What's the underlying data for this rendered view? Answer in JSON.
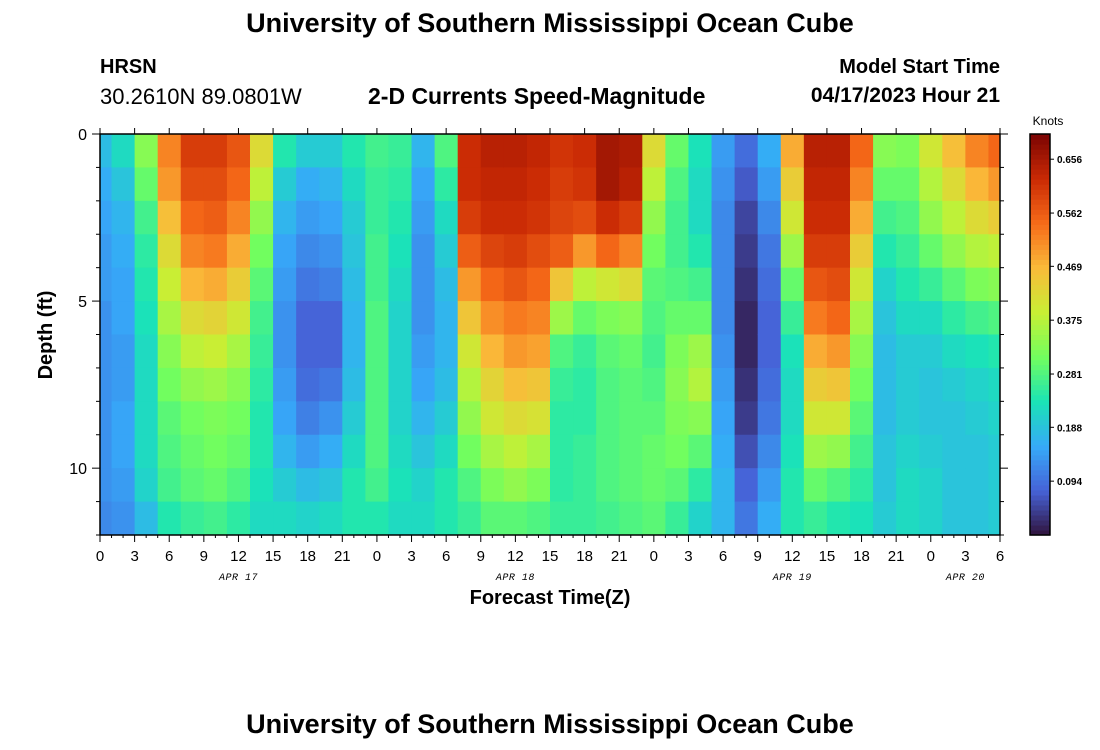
{
  "header": {
    "title": "University of Southern Mississippi Ocean Cube",
    "station": "HRSN",
    "coordinates": "30.2610N  89.0801W",
    "subtitle": "2-D Currents Speed-Magnitude",
    "model_start_label": "Model Start Time",
    "model_start_value": "04/17/2023 Hour 21"
  },
  "footer": {
    "title": "University of Southern Mississippi Ocean Cube"
  },
  "chart_data": {
    "type": "heatmap",
    "title": "2-D Currents Speed-Magnitude",
    "xlabel": "Forecast Time(Z)",
    "ylabel": "Depth (ft)",
    "x_unit": "hours since APR 17 00Z",
    "xlim": [
      0,
      78
    ],
    "ylim": [
      0,
      12
    ],
    "y_inverted": true,
    "x_tick_labels": [
      "0",
      "3",
      "6",
      "9",
      "12",
      "15",
      "18",
      "21",
      "0",
      "3",
      "6",
      "9",
      "12",
      "15",
      "18",
      "21",
      "0",
      "3",
      "6",
      "9",
      "12",
      "15",
      "18",
      "21",
      "0",
      "3",
      "6"
    ],
    "date_labels": [
      {
        "text": "APR 17",
        "hour": 12
      },
      {
        "text": "APR 18",
        "hour": 36
      },
      {
        "text": "APR 19",
        "hour": 60
      },
      {
        "text": "APR 20",
        "hour": 75
      }
    ],
    "y_major_ticks": [
      0,
      5,
      10
    ],
    "colorbar": {
      "title": "Knots",
      "min": 0.0,
      "max": 0.7,
      "tick_labels": [
        "0.094",
        "0.188",
        "0.281",
        "0.375",
        "0.469",
        "0.562",
        "0.656"
      ],
      "colors": [
        "#30123b",
        "#4662d7",
        "#36aaf9",
        "#1ae4b6",
        "#72fe5e",
        "#c8ef34",
        "#faba39",
        "#f66b19",
        "#ca2a04",
        "#7a0403"
      ]
    },
    "depths": [
      0.5,
      1.5,
      2.5,
      3.5,
      4.5,
      5.5,
      6.5,
      7.5,
      8.5,
      9.5,
      10.5,
      11.5
    ],
    "series": [
      {
        "time": 0,
        "values": [
          0.18,
          0.16,
          0.15,
          0.14,
          0.14,
          0.13,
          0.13,
          0.13,
          0.13,
          0.13,
          0.13,
          0.12
        ]
      },
      {
        "time": 2,
        "values": [
          0.22,
          0.19,
          0.17,
          0.16,
          0.15,
          0.15,
          0.14,
          0.14,
          0.15,
          0.15,
          0.14,
          0.13
        ]
      },
      {
        "time": 4,
        "values": [
          0.33,
          0.3,
          0.27,
          0.25,
          0.24,
          0.23,
          0.22,
          0.22,
          0.22,
          0.22,
          0.21,
          0.18
        ]
      },
      {
        "time": 6,
        "values": [
          0.52,
          0.5,
          0.46,
          0.42,
          0.39,
          0.36,
          0.33,
          0.31,
          0.29,
          0.28,
          0.27,
          0.24
        ]
      },
      {
        "time": 8,
        "values": [
          0.6,
          0.58,
          0.55,
          0.52,
          0.47,
          0.42,
          0.38,
          0.34,
          0.31,
          0.3,
          0.29,
          0.26
        ]
      },
      {
        "time": 10,
        "values": [
          0.6,
          0.58,
          0.56,
          0.53,
          0.48,
          0.43,
          0.39,
          0.35,
          0.32,
          0.31,
          0.3,
          0.27
        ]
      },
      {
        "time": 12,
        "values": [
          0.57,
          0.55,
          0.52,
          0.48,
          0.44,
          0.4,
          0.36,
          0.33,
          0.31,
          0.3,
          0.28,
          0.25
        ]
      },
      {
        "time": 14,
        "values": [
          0.42,
          0.38,
          0.34,
          0.31,
          0.29,
          0.27,
          0.26,
          0.25,
          0.24,
          0.24,
          0.23,
          0.22
        ]
      },
      {
        "time": 16,
        "values": [
          0.24,
          0.2,
          0.17,
          0.15,
          0.14,
          0.13,
          0.13,
          0.14,
          0.15,
          0.17,
          0.2,
          0.22
        ]
      },
      {
        "time": 18,
        "values": [
          0.2,
          0.16,
          0.14,
          0.12,
          0.1,
          0.08,
          0.08,
          0.09,
          0.11,
          0.14,
          0.18,
          0.21
        ]
      },
      {
        "time": 20,
        "values": [
          0.2,
          0.17,
          0.15,
          0.13,
          0.11,
          0.08,
          0.08,
          0.1,
          0.13,
          0.16,
          0.19,
          0.22
        ]
      },
      {
        "time": 22,
        "values": [
          0.24,
          0.22,
          0.2,
          0.19,
          0.18,
          0.17,
          0.17,
          0.18,
          0.2,
          0.22,
          0.24,
          0.24
        ]
      },
      {
        "time": 24,
        "values": [
          0.27,
          0.26,
          0.26,
          0.27,
          0.27,
          0.28,
          0.28,
          0.28,
          0.28,
          0.28,
          0.27,
          0.24
        ]
      },
      {
        "time": 26,
        "values": [
          0.26,
          0.25,
          0.24,
          0.23,
          0.22,
          0.21,
          0.21,
          0.21,
          0.21,
          0.22,
          0.23,
          0.22
        ]
      },
      {
        "time": 28,
        "values": [
          0.17,
          0.15,
          0.14,
          0.13,
          0.13,
          0.13,
          0.14,
          0.15,
          0.17,
          0.19,
          0.21,
          0.22
        ]
      },
      {
        "time": 30,
        "values": [
          0.28,
          0.25,
          0.22,
          0.2,
          0.18,
          0.17,
          0.17,
          0.18,
          0.2,
          0.22,
          0.24,
          0.24
        ]
      },
      {
        "time": 32,
        "values": [
          0.62,
          0.62,
          0.6,
          0.56,
          0.5,
          0.45,
          0.4,
          0.37,
          0.34,
          0.31,
          0.28,
          0.26
        ]
      },
      {
        "time": 34,
        "values": [
          0.64,
          0.63,
          0.62,
          0.59,
          0.55,
          0.51,
          0.47,
          0.43,
          0.4,
          0.36,
          0.32,
          0.29
        ]
      },
      {
        "time": 36,
        "values": [
          0.64,
          0.63,
          0.62,
          0.6,
          0.57,
          0.53,
          0.5,
          0.46,
          0.42,
          0.38,
          0.34,
          0.29
        ]
      },
      {
        "time": 38,
        "values": [
          0.63,
          0.62,
          0.61,
          0.58,
          0.55,
          0.52,
          0.49,
          0.45,
          0.41,
          0.36,
          0.32,
          0.28
        ]
      },
      {
        "time": 40,
        "values": [
          0.61,
          0.6,
          0.59,
          0.56,
          0.45,
          0.35,
          0.28,
          0.26,
          0.25,
          0.25,
          0.25,
          0.26
        ]
      },
      {
        "time": 42,
        "values": [
          0.62,
          0.61,
          0.58,
          0.5,
          0.38,
          0.3,
          0.26,
          0.25,
          0.25,
          0.26,
          0.26,
          0.26
        ]
      },
      {
        "time": 44,
        "values": [
          0.66,
          0.66,
          0.62,
          0.55,
          0.4,
          0.32,
          0.29,
          0.28,
          0.28,
          0.28,
          0.28,
          0.27
        ]
      },
      {
        "time": 46,
        "values": [
          0.65,
          0.64,
          0.6,
          0.52,
          0.42,
          0.33,
          0.3,
          0.29,
          0.29,
          0.29,
          0.29,
          0.28
        ]
      },
      {
        "time": 48,
        "values": [
          0.42,
          0.38,
          0.34,
          0.31,
          0.29,
          0.28,
          0.27,
          0.28,
          0.29,
          0.3,
          0.3,
          0.29
        ]
      },
      {
        "time": 50,
        "values": [
          0.3,
          0.28,
          0.27,
          0.27,
          0.28,
          0.3,
          0.32,
          0.33,
          0.32,
          0.31,
          0.29,
          0.26
        ]
      },
      {
        "time": 52,
        "values": [
          0.23,
          0.22,
          0.22,
          0.24,
          0.27,
          0.3,
          0.35,
          0.37,
          0.33,
          0.29,
          0.25,
          0.21
        ]
      },
      {
        "time": 54,
        "values": [
          0.14,
          0.13,
          0.12,
          0.12,
          0.12,
          0.12,
          0.13,
          0.14,
          0.15,
          0.16,
          0.17,
          0.17
        ]
      },
      {
        "time": 56,
        "values": [
          0.09,
          0.07,
          0.05,
          0.04,
          0.03,
          0.02,
          0.02,
          0.03,
          0.04,
          0.06,
          0.08,
          0.1
        ]
      },
      {
        "time": 58,
        "values": [
          0.16,
          0.14,
          0.12,
          0.1,
          0.09,
          0.08,
          0.08,
          0.09,
          0.1,
          0.12,
          0.14,
          0.16
        ]
      },
      {
        "time": 60,
        "values": [
          0.48,
          0.44,
          0.4,
          0.35,
          0.3,
          0.26,
          0.23,
          0.22,
          0.22,
          0.23,
          0.24,
          0.24
        ]
      },
      {
        "time": 62,
        "values": [
          0.64,
          0.63,
          0.62,
          0.6,
          0.57,
          0.53,
          0.48,
          0.44,
          0.4,
          0.35,
          0.3,
          0.26
        ]
      },
      {
        "time": 64,
        "values": [
          0.64,
          0.63,
          0.62,
          0.6,
          0.58,
          0.55,
          0.5,
          0.45,
          0.4,
          0.34,
          0.28,
          0.24
        ]
      },
      {
        "time": 66,
        "values": [
          0.55,
          0.52,
          0.48,
          0.44,
          0.4,
          0.36,
          0.33,
          0.31,
          0.29,
          0.27,
          0.25,
          0.23
        ]
      },
      {
        "time": 68,
        "values": [
          0.33,
          0.3,
          0.27,
          0.24,
          0.21,
          0.19,
          0.18,
          0.18,
          0.18,
          0.19,
          0.19,
          0.2
        ]
      },
      {
        "time": 70,
        "values": [
          0.32,
          0.3,
          0.28,
          0.26,
          0.24,
          0.22,
          0.2,
          0.2,
          0.2,
          0.21,
          0.22,
          0.22
        ]
      },
      {
        "time": 72,
        "values": [
          0.4,
          0.37,
          0.34,
          0.3,
          0.26,
          0.22,
          0.2,
          0.19,
          0.19,
          0.2,
          0.21,
          0.21
        ]
      },
      {
        "time": 74,
        "values": [
          0.46,
          0.42,
          0.38,
          0.34,
          0.29,
          0.25,
          0.22,
          0.2,
          0.19,
          0.19,
          0.19,
          0.19
        ]
      },
      {
        "time": 76,
        "values": [
          0.52,
          0.47,
          0.42,
          0.37,
          0.32,
          0.27,
          0.23,
          0.21,
          0.2,
          0.19,
          0.19,
          0.19
        ]
      },
      {
        "time": 78,
        "values": [
          0.55,
          0.5,
          0.44,
          0.38,
          0.33,
          0.28,
          0.24,
          0.22,
          0.21,
          0.2,
          0.2,
          0.2
        ]
      }
    ]
  }
}
